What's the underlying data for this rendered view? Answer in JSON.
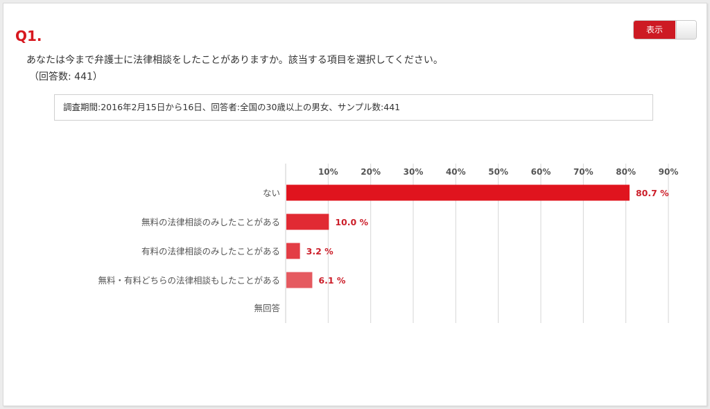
{
  "toggle": {
    "label": "表示",
    "state": "on"
  },
  "question": {
    "number": "Q1.",
    "text": "あなたは今まで弁護士に法律相談をしたことがありますか。該当する項目を選択してください。",
    "count": "（回答数: 441）"
  },
  "survey_info": "調査期間:2016年2月15日から16日、回答者:全国の30歳以上の男女、サンプル数:441",
  "colors": {
    "accent": "#d7181f",
    "bar_value": "#cc1f2a"
  },
  "chart_data": {
    "type": "bar",
    "orientation": "horizontal",
    "categories": [
      "ない",
      "無料の法律相談のみしたことがある",
      "有料の法律相談のみしたことがある",
      "無料・有料どちらの法律相談もしたことがある",
      "無回答"
    ],
    "values": [
      80.7,
      10.0,
      3.2,
      6.1,
      null
    ],
    "value_labels": [
      "80.7 %",
      "10.0 %",
      "3.2 %",
      "6.1 %",
      ""
    ],
    "bar_colors": [
      "#e0141e",
      "#e12a33",
      "#e33d45",
      "#e55a60",
      "#e55a60"
    ],
    "xlim": [
      0,
      90
    ],
    "xticks": [
      10,
      20,
      30,
      40,
      50,
      60,
      70,
      80,
      90
    ],
    "tick_labels": [
      "10%",
      "20%",
      "30%",
      "40%",
      "50%",
      "60%",
      "70%",
      "80%",
      "90%"
    ],
    "grid": true
  }
}
